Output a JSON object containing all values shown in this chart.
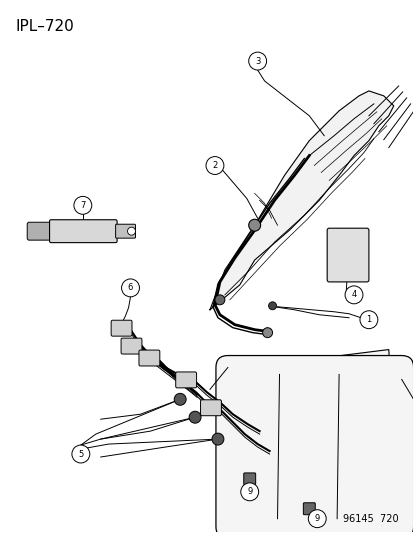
{
  "title": "IPL–720",
  "footer": "96145  720",
  "bg_color": "#ffffff",
  "title_fontsize": 11,
  "footer_fontsize": 7
}
